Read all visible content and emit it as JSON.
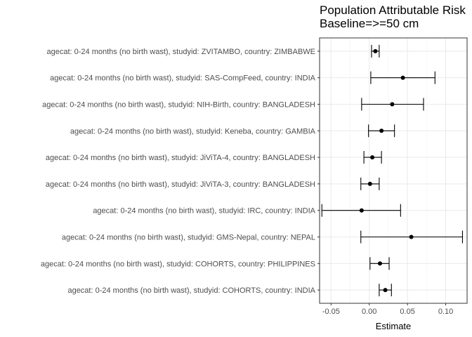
{
  "chart_data": {
    "type": "forest",
    "title": [
      "Population Attributable Risk",
      "Baseline=>=50 cm"
    ],
    "xlabel": "Estimate",
    "ylabel": "",
    "xlim": [
      -0.065,
      0.128
    ],
    "xticks": [
      -0.05,
      0.0,
      0.05,
      0.1
    ],
    "xtick_labels": [
      "-0.05",
      "0.00",
      "0.05",
      "0.10"
    ],
    "grid": true,
    "colors": {
      "point": "#000000",
      "grid_major": "#ebebeb",
      "grid_minor": "#f5f5f5",
      "border": "#333333"
    },
    "rows": [
      {
        "label": "agecat: 0-24 months (no birth wast), studyid: ZVITAMBO, country: ZIMBABWE",
        "estimate": 0.008,
        "lower": 0.003,
        "upper": 0.013
      },
      {
        "label": "agecat: 0-24 months (no birth wast), studyid: SAS-CompFeed, country: INDIA",
        "estimate": 0.044,
        "lower": 0.002,
        "upper": 0.086
      },
      {
        "label": "agecat: 0-24 months (no birth wast), studyid: NIH-Birth, country: BANGLADESH",
        "estimate": 0.03,
        "lower": -0.01,
        "upper": 0.071
      },
      {
        "label": "agecat: 0-24 months (no birth wast), studyid: Keneba, country: GAMBIA",
        "estimate": 0.016,
        "lower": -0.001,
        "upper": 0.033
      },
      {
        "label": "agecat: 0-24 months (no birth wast), studyid: JiViTA-4, country: BANGLADESH",
        "estimate": 0.004,
        "lower": -0.007,
        "upper": 0.016
      },
      {
        "label": "agecat: 0-24 months (no birth wast), studyid: JiViTA-3, country: BANGLADESH",
        "estimate": 0.001,
        "lower": -0.011,
        "upper": 0.013
      },
      {
        "label": "agecat: 0-24 months (no birth wast), studyid: IRC, country: INDIA",
        "estimate": -0.01,
        "lower": -0.062,
        "upper": 0.041
      },
      {
        "label": "agecat: 0-24 months (no birth wast), studyid: GMS-Nepal, country: NEPAL",
        "estimate": 0.055,
        "lower": -0.011,
        "upper": 0.122
      },
      {
        "label": "agecat: 0-24 months (no birth wast), studyid: COHORTS, country: PHILIPPINES",
        "estimate": 0.014,
        "lower": 0.001,
        "upper": 0.026
      },
      {
        "label": "agecat: 0-24 months (no birth wast), studyid: COHORTS, country: INDIA",
        "estimate": 0.021,
        "lower": 0.013,
        "upper": 0.029
      }
    ]
  }
}
